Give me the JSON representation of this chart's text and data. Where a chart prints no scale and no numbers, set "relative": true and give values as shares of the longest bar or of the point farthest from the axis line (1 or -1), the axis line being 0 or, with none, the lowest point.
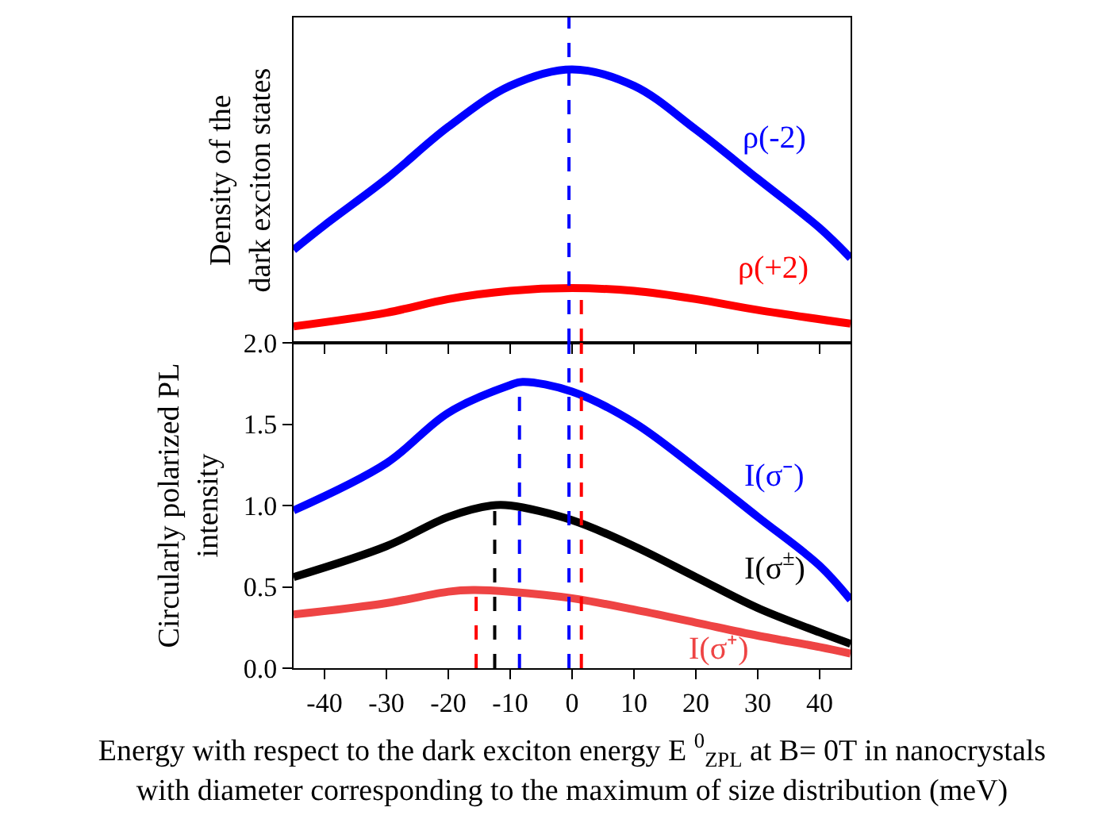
{
  "chart_data": [
    {
      "type": "line",
      "relative": true,
      "ylabel": "Density of the\ndark exciton states",
      "xlim": [
        -45,
        45
      ],
      "xticks": [
        -40,
        -30,
        -20,
        -10,
        0,
        10,
        20,
        30,
        40
      ],
      "tick_labels": false,
      "grid": false,
      "marker": "none",
      "series": [
        {
          "name": "ρ(-2)",
          "color": "#0000ff",
          "x": [
            -45,
            -40,
            -30,
            -20,
            -10,
            0,
            10,
            20,
            30,
            40,
            45
          ],
          "values": [
            0.34,
            0.43,
            0.6,
            0.79,
            0.94,
            1.0,
            0.94,
            0.78,
            0.6,
            0.42,
            0.31
          ]
        },
        {
          "name": "ρ(+2)",
          "color": "#ff0000",
          "x": [
            -45,
            -30,
            -20,
            -10,
            0,
            10,
            20,
            30,
            45
          ],
          "values": [
            0.06,
            0.11,
            0.16,
            0.19,
            0.2,
            0.19,
            0.16,
            0.12,
            0.07
          ]
        },
        {
          "type": "line",
          "line_style": "dashed",
          "color": "#ff0000",
          "x": [
            1.5,
            1.5
          ],
          "values": [
            0,
            0.2
          ]
        }
      ],
      "ref_lines": [
        {
          "axis": "x",
          "value": -0.5,
          "color": "#0000ff",
          "line_style": "dashed"
        }
      ]
    },
    {
      "type": "line",
      "ylabel": "Circularly polarized PL\nintensity",
      "xlabel": "Energy with respect to the dark exciton energy E $^{0}$$_{ZPL}$ at B= 0T in nanocrystals\nwith diameter corresponding to the maximum of size distribution (meV)",
      "xlim": [
        -45,
        45
      ],
      "xticks": [
        -40,
        -30,
        -20,
        -10,
        0,
        10,
        20,
        30,
        40
      ],
      "ylim": [
        0,
        2
      ],
      "yticks": [
        {
          "value": 0,
          "label": "0.0"
        },
        0.5,
        {
          "value": 1,
          "label": "1.0"
        },
        1.5,
        {
          "value": 2,
          "label": "2.0"
        }
      ],
      "grid": false,
      "marker": "none",
      "series": [
        {
          "name": "I(σ⁻)",
          "color": "#0000ff",
          "x": [
            -45,
            -30,
            -20,
            -10,
            -8,
            0,
            10,
            20,
            30,
            40,
            45
          ],
          "values": [
            0.97,
            1.26,
            1.57,
            1.74,
            1.76,
            1.7,
            1.51,
            1.23,
            0.93,
            0.63,
            0.42
          ]
        },
        {
          "name": "I(σ$^{±}$)",
          "color": "#000000",
          "x": [
            -45,
            -30,
            -20,
            -13,
            -10,
            0,
            10,
            20,
            30,
            40,
            45
          ],
          "values": [
            0.56,
            0.75,
            0.93,
            1.0,
            1.0,
            0.91,
            0.75,
            0.56,
            0.37,
            0.22,
            0.15
          ]
        },
        {
          "name": "I(σ⁺)",
          "color": "#ee4444",
          "x": [
            -45,
            -30,
            -20,
            -16,
            -10,
            0,
            10,
            20,
            30,
            40,
            45
          ],
          "values": [
            0.33,
            0.4,
            0.47,
            0.48,
            0.47,
            0.43,
            0.36,
            0.28,
            0.2,
            0.13,
            0.09
          ]
        },
        {
          "type": "line",
          "line_style": "dashed",
          "color": "#0000ff",
          "x": [
            -8.5,
            -8.5
          ],
          "values": [
            0,
            1.76
          ]
        },
        {
          "type": "line",
          "line_style": "dashed",
          "color": "#000000",
          "x": [
            -12.5,
            -12.5
          ],
          "values": [
            0,
            1.0
          ]
        },
        {
          "type": "line",
          "line_style": "dashed",
          "color": "#ff0000",
          "x": [
            -15.5,
            -15.5
          ],
          "values": [
            0,
            0.48
          ]
        }
      ],
      "ref_lines": [
        {
          "axis": "x",
          "value": -0.5,
          "color": "#0000ff",
          "line_style": "dashed"
        },
        {
          "axis": "x",
          "value": 1.5,
          "color": "#ff0000",
          "line_style": "dashed"
        }
      ]
    }
  ]
}
